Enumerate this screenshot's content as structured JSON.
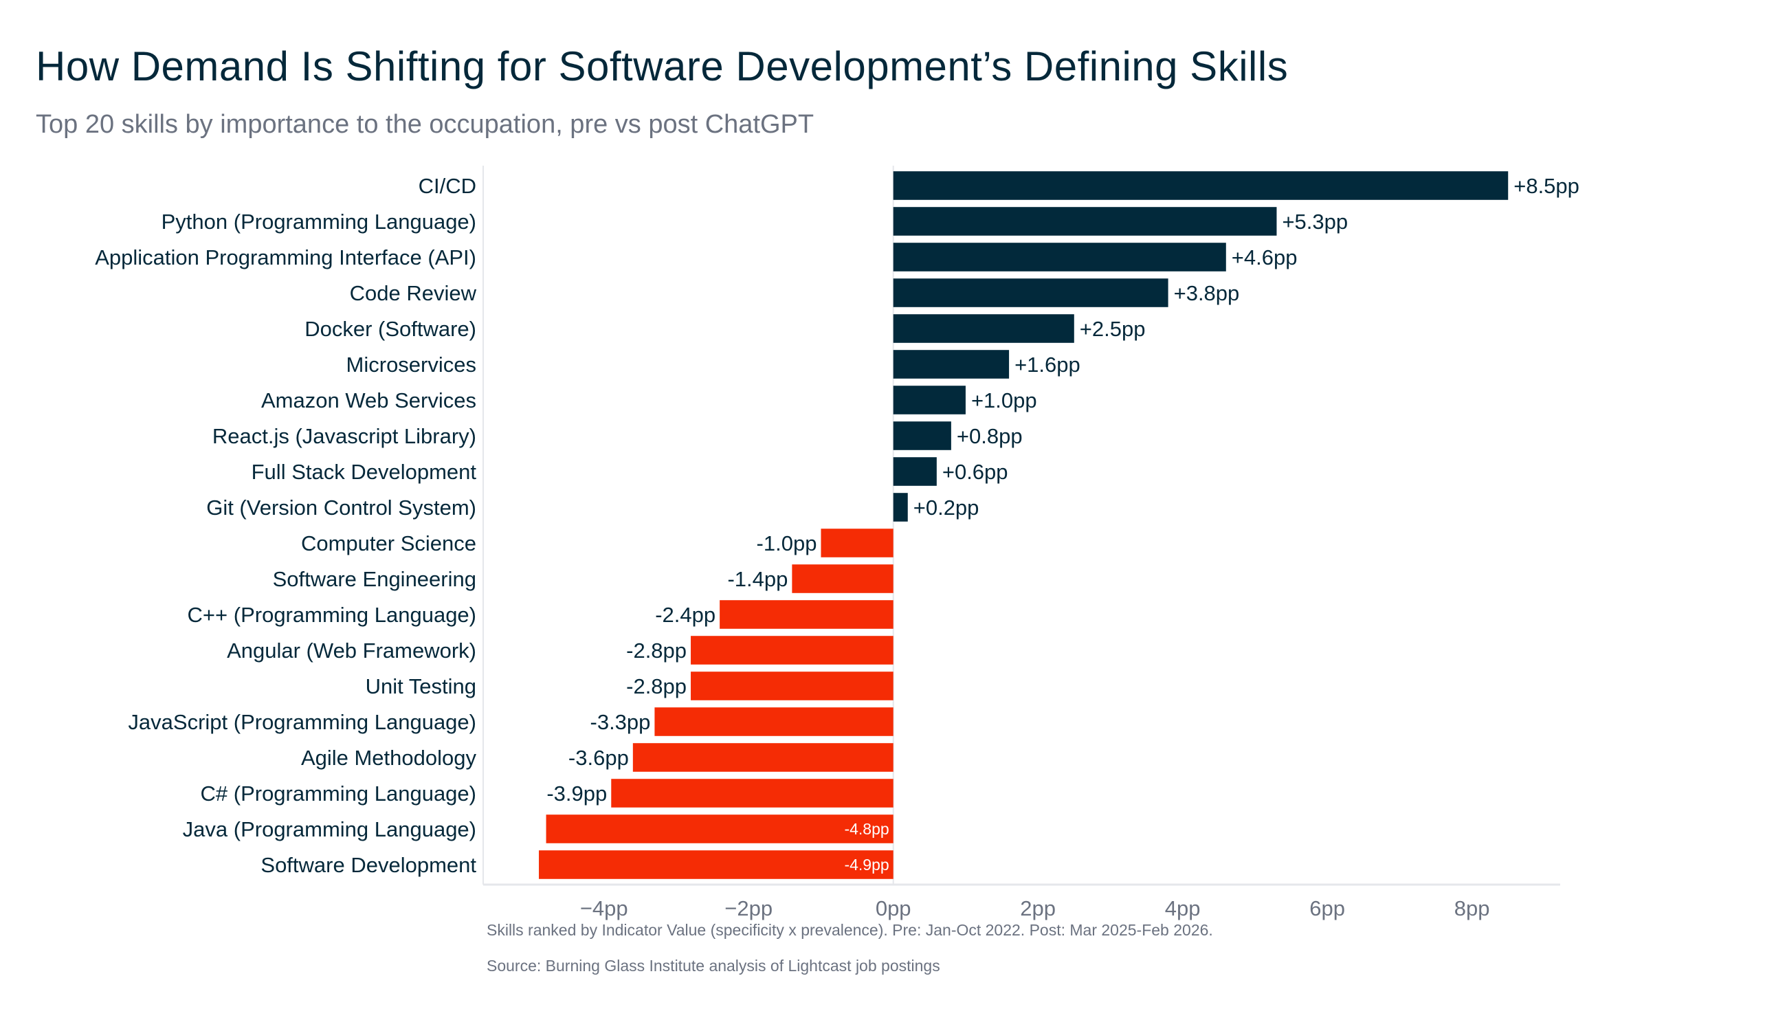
{
  "chart_data": {
    "type": "bar",
    "orientation": "horizontal",
    "title": "How Demand Is Shifting for Software Development’s Defining Skills",
    "subtitle": "Top 20 skills by importance to the occupation, pre vs post ChatGPT",
    "categories": [
      "CI/CD",
      "Python (Programming Language)",
      "Application Programming Interface (API)",
      "Code Review",
      "Docker (Software)",
      "Microservices",
      "Amazon Web Services",
      "React.js (Javascript Library)",
      "Full Stack Development",
      "Git (Version Control System)",
      "Computer Science",
      "Software Engineering",
      "C++ (Programming Language)",
      "Angular (Web Framework)",
      "Unit Testing",
      "JavaScript (Programming Language)",
      "Agile Methodology",
      "C# (Programming Language)",
      "Java (Programming Language)",
      "Software Development"
    ],
    "values": [
      8.5,
      5.3,
      4.6,
      3.8,
      2.5,
      1.6,
      1.0,
      0.8,
      0.6,
      0.2,
      -1.0,
      -1.4,
      -2.4,
      -2.8,
      -2.8,
      -3.3,
      -3.6,
      -3.9,
      -4.8,
      -4.9
    ],
    "data_labels": [
      "+8.5pp",
      "+5.3pp",
      "+4.6pp",
      "+3.8pp",
      "+2.5pp",
      "+1.6pp",
      "+1.0pp",
      "+0.8pp",
      "+0.6pp",
      "+0.2pp",
      "-1.0pp",
      "-1.4pp",
      "-2.4pp",
      "-2.8pp",
      "-2.8pp",
      "-3.3pp",
      "-3.6pp",
      "-3.9pp",
      "-4.8pp",
      "-4.9pp"
    ],
    "xlim": [
      -5.67,
      9.22
    ],
    "xticks": [
      -4,
      -2,
      0,
      2,
      4,
      6,
      8
    ],
    "xtick_labels": [
      "−4pp",
      "−2pp",
      "0pp",
      "2pp",
      "4pp",
      "6pp",
      "8pp"
    ],
    "xlabel": "",
    "ylabel": "",
    "grid": false,
    "colors": {
      "positive": "#02293b",
      "negative": "#f52c05"
    }
  },
  "notes": {
    "method": "Skills ranked by Indicator Value (specificity x prevalence). Pre: Jan-Oct 2022. Post: Mar 2025-Feb 2026.",
    "source": "Source: Burning Glass Institute analysis of Lightcast job postings"
  }
}
